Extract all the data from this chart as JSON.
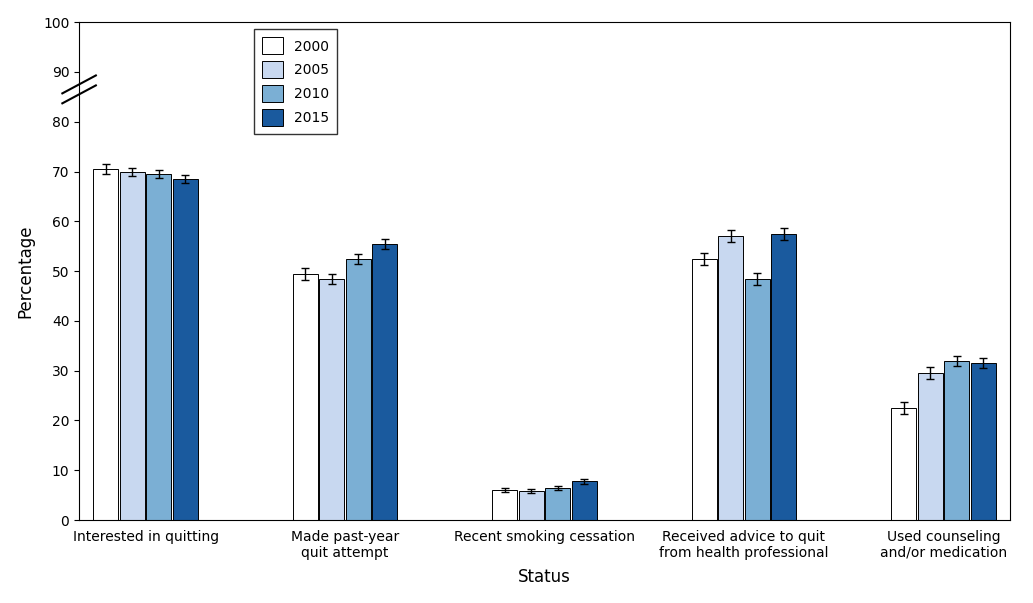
{
  "categories": [
    "Interested in quitting",
    "Made past-year\nquit attempt",
    "Recent smoking cessation",
    "Received advice to quit\nfrom health professional",
    "Used counseling\nand/or medication"
  ],
  "years": [
    "2000",
    "2005",
    "2010",
    "2015"
  ],
  "bar_colors": [
    "#ffffff",
    "#c8d8f0",
    "#7bafd4",
    "#1a5a9e"
  ],
  "bar_edge_color": "#000000",
  "values": [
    [
      70.5,
      70.0,
      69.5,
      68.5
    ],
    [
      49.5,
      48.5,
      52.5,
      55.5
    ],
    [
      6.0,
      5.8,
      6.5,
      7.8
    ],
    [
      52.5,
      57.0,
      48.5,
      57.5
    ],
    [
      22.5,
      29.5,
      32.0,
      31.5
    ]
  ],
  "errors": [
    [
      1.0,
      0.8,
      0.8,
      0.9
    ],
    [
      1.2,
      1.0,
      1.0,
      1.0
    ],
    [
      0.4,
      0.4,
      0.4,
      0.5
    ],
    [
      1.2,
      1.2,
      1.2,
      1.2
    ],
    [
      1.2,
      1.2,
      1.0,
      1.0
    ]
  ],
  "xlabel": "Status",
  "ylabel": "Percentage",
  "ylim": [
    0,
    100
  ],
  "yticks": [
    0,
    10,
    20,
    30,
    40,
    50,
    60,
    70,
    80,
    90,
    100
  ],
  "bar_width": 0.15,
  "group_positions": [
    0.3,
    1.5,
    2.7,
    3.9,
    5.1
  ],
  "legend_labels": [
    "2000",
    "2005",
    "2010",
    "2015"
  ],
  "xlabel_fontsize": 12,
  "ylabel_fontsize": 12,
  "tick_fontsize": 10,
  "legend_fontsize": 10
}
